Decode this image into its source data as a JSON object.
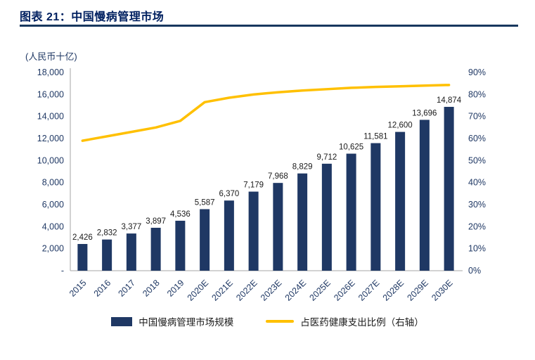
{
  "header": {
    "title": "图表 21：中国慢病管理市场"
  },
  "chart": {
    "unit_label": "(人民币十亿)"
  },
  "legend": {
    "bar_label": "中国慢病管理市场规模",
    "line_label": "占医药健康支出比例（右轴）"
  },
  "colors": {
    "bar": "#1F3864",
    "line": "#FFC000",
    "axis_text": "#1F3864",
    "value_label": "#1a1a1a",
    "axis_line": "#A6A6A6",
    "title": "#002060"
  },
  "chart_data": {
    "type": "bar+line",
    "title": "中国慢病管理市场",
    "unit": "人民币十亿",
    "categories": [
      "2015",
      "2016",
      "2017",
      "2018",
      "2019",
      "2020E",
      "2021E",
      "2022E",
      "2023E",
      "2024E",
      "2025E",
      "2026E",
      "2027E",
      "2028E",
      "2029E",
      "2030E"
    ],
    "series": [
      {
        "name": "中国慢病管理市场规模",
        "type": "bar",
        "axis": "left",
        "values": [
          2426,
          2832,
          3377,
          3897,
          4536,
          5587,
          6370,
          7179,
          7968,
          8829,
          9712,
          10625,
          11581,
          12600,
          13696,
          14874
        ]
      },
      {
        "name": "占医药健康支出比例（右轴）",
        "type": "line",
        "axis": "right",
        "values": [
          59,
          61,
          63,
          65,
          68,
          76.5,
          78.5,
          80,
          81,
          81.8,
          82.4,
          83,
          83.4,
          83.7,
          84,
          84.3
        ]
      }
    ],
    "left_axis": {
      "min": 0,
      "max": 18000,
      "step": 2000,
      "zero_label": "-"
    },
    "right_axis": {
      "min": 0,
      "max": 90,
      "step": 10,
      "format": "percent"
    },
    "grid": false,
    "legend_position": "bottom"
  }
}
